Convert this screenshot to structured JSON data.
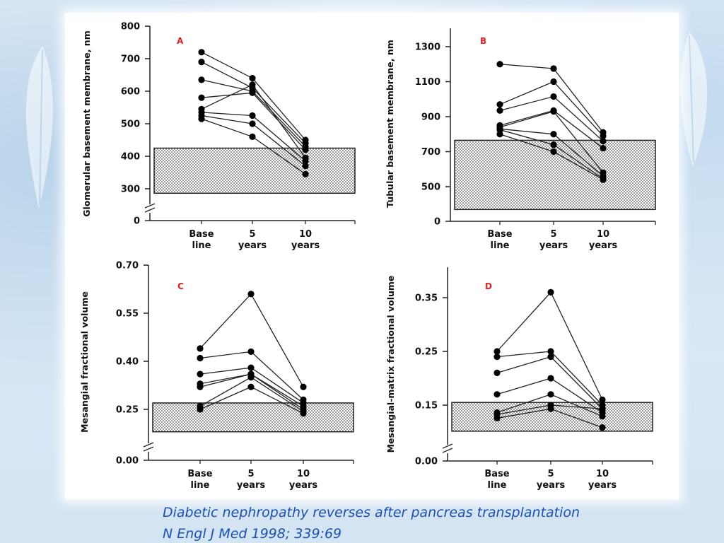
{
  "caption": {
    "line1": "Diabetic nephropathy reverses after pancreas transplantation",
    "line2": "N Engl J Med 1998; 339:69"
  },
  "colors": {
    "line": "#222222",
    "marker": "#000000",
    "panel_label": "#e02020",
    "caption": "#1c4fb6",
    "normal_range_fill": "#d8d8d8"
  },
  "chart_data": [
    {
      "type": "line",
      "panel_label": "A",
      "ylabel": "Glomerular basement membrane, nm",
      "ylim": [
        0,
        800
      ],
      "axis_break": true,
      "yticks": [
        0,
        300,
        400,
        500,
        600,
        700,
        800
      ],
      "categories": [
        [
          "Base",
          "line"
        ],
        [
          "5",
          "years"
        ],
        [
          "10",
          "years"
        ]
      ],
      "normal_range": [
        258,
        425
      ],
      "series": [
        {
          "values": [
            720,
            640,
            450
          ]
        },
        {
          "values": [
            690,
            610,
            440
          ]
        },
        {
          "values": [
            635,
            600,
            430
          ]
        },
        {
          "values": [
            580,
            595,
            420
          ]
        },
        {
          "values": [
            545,
            620,
            395
          ]
        },
        {
          "values": [
            535,
            525,
            385
          ]
        },
        {
          "values": [
            525,
            500,
            370
          ]
        },
        {
          "values": [
            515,
            460,
            345
          ]
        }
      ]
    },
    {
      "type": "line",
      "panel_label": "B",
      "ylabel": "Tubular basement membrane, nm",
      "ylim": [
        0,
        1400
      ],
      "axis_break": false,
      "yticks": [
        0,
        500,
        700,
        900,
        1100,
        1300
      ],
      "categories": [
        [
          "Base",
          "line"
        ],
        [
          "5",
          "years"
        ],
        [
          "10",
          "years"
        ]
      ],
      "normal_range": [
        170,
        765
      ],
      "series": [
        {
          "values": [
            1200,
            1175,
            810
          ]
        },
        {
          "values": [
            970,
            1100,
            790
          ]
        },
        {
          "values": [
            935,
            1015,
            760
          ]
        },
        {
          "values": [
            850,
            935,
            720
          ]
        },
        {
          "values": [
            840,
            930,
            580
          ]
        },
        {
          "values": [
            830,
            800,
            560
          ]
        },
        {
          "values": [
            825,
            740,
            545
          ]
        },
        {
          "values": [
            800,
            700,
            540
          ]
        }
      ]
    },
    {
      "type": "line",
      "panel_label": "C",
      "ylabel": "Mesangial fractional volume",
      "ylim": [
        0,
        0.7
      ],
      "axis_break": true,
      "yticks": [
        "0.00",
        "0.25",
        "0.40",
        "0.55",
        "0.70"
      ],
      "categories": [
        [
          "Base",
          "line"
        ],
        [
          "5",
          "years"
        ],
        [
          "10",
          "years"
        ]
      ],
      "normal_range": [
        0.14,
        0.27
      ],
      "series": [
        {
          "values": [
            0.44,
            0.61,
            0.32
          ]
        },
        {
          "values": [
            0.41,
            0.43,
            0.28
          ]
        },
        {
          "values": [
            0.36,
            0.38,
            0.27
          ]
        },
        {
          "values": [
            0.33,
            0.36,
            0.26
          ]
        },
        {
          "values": [
            0.32,
            0.36,
            0.25
          ]
        },
        {
          "values": [
            0.26,
            0.35,
            0.24
          ]
        },
        {
          "values": [
            0.25,
            0.32,
            0.23
          ]
        }
      ]
    },
    {
      "type": "line",
      "panel_label": "D",
      "ylabel": "Mesangial-matrix fractional volume",
      "ylim": [
        0,
        0.4
      ],
      "axis_break": true,
      "yticks": [
        "0.00",
        "0.15",
        "0.25",
        "0.35"
      ],
      "categories": [
        [
          "Base",
          "line"
        ],
        [
          "5",
          "years"
        ],
        [
          "10",
          "years"
        ]
      ],
      "normal_range": [
        0.08,
        0.155
      ],
      "series": [
        {
          "values": [
            0.25,
            0.36,
            0.16
          ]
        },
        {
          "values": [
            0.24,
            0.25,
            0.15
          ]
        },
        {
          "values": [
            0.21,
            0.24,
            0.14
          ]
        },
        {
          "values": [
            0.17,
            0.2,
            0.13
          ]
        },
        {
          "values": [
            0.13,
            0.17,
            0.12
          ]
        },
        {
          "values": [
            0.125,
            0.15,
            0.14
          ]
        },
        {
          "values": [
            0.115,
            0.14,
            0.09
          ]
        }
      ]
    }
  ]
}
